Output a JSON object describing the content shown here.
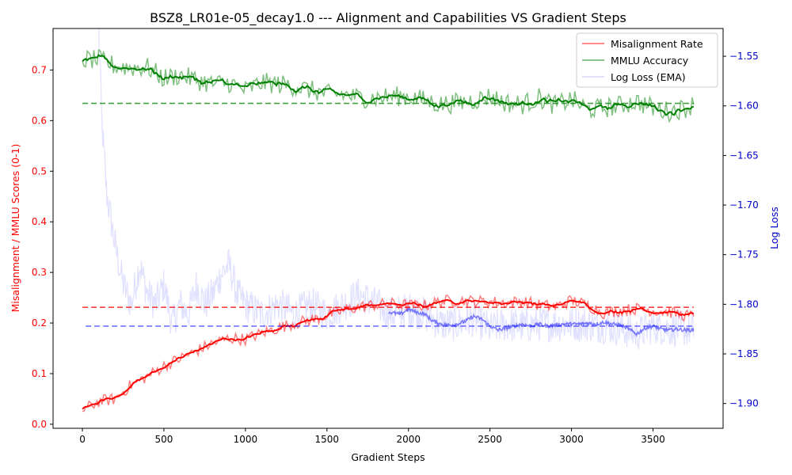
{
  "chart_data": {
    "type": "line",
    "title": "BSZ8_LR01e-05_decay1.0 --- Alignment and Capabilities VS Gradient Steps",
    "xlabel": "Gradient Steps",
    "ylabel_left": "Misalignment / MMLU Scores (0-1)",
    "ylabel_right": "Log Loss",
    "xlim": [
      -180,
      3930
    ],
    "ylim_left": [
      -0.008,
      0.782
    ],
    "ylim_right": [
      -1.925,
      -1.522
    ],
    "x_ticks": [
      0,
      500,
      1000,
      1500,
      2000,
      2500,
      3000,
      3500
    ],
    "y_left_ticks": [
      0.0,
      0.1,
      0.2,
      0.3,
      0.4,
      0.5,
      0.6,
      0.7
    ],
    "y_right_ticks": [
      -1.9,
      -1.85,
      -1.8,
      -1.75,
      -1.7,
      -1.65,
      -1.6,
      -1.55
    ],
    "legend": {
      "placement": "top-right",
      "entries": [
        "Misalignment Rate",
        "MMLU Accuracy",
        "Log Loss (EMA)"
      ]
    },
    "colors": {
      "misalignment": "#ff0000",
      "mmlu": "#008000",
      "loss": "#0000ff",
      "left_axis": "#ff0000",
      "right_axis": "#0000cc"
    },
    "series": [
      {
        "name": "Misalignment Rate",
        "axis": "left",
        "x": [
          0,
          100,
          200,
          300,
          400,
          500,
          600,
          700,
          800,
          900,
          1000,
          1100,
          1200,
          1300,
          1400,
          1500,
          1600,
          1700,
          1800,
          1900,
          2000,
          2100,
          2200,
          2300,
          2400,
          2500,
          2600,
          2700,
          2800,
          2900,
          3000,
          3100,
          3200,
          3300,
          3400,
          3500,
          3600,
          3700,
          3750
        ],
        "y": [
          0.027,
          0.045,
          0.05,
          0.078,
          0.095,
          0.115,
          0.13,
          0.145,
          0.16,
          0.17,
          0.168,
          0.18,
          0.19,
          0.2,
          0.205,
          0.215,
          0.225,
          0.232,
          0.236,
          0.238,
          0.235,
          0.235,
          0.243,
          0.245,
          0.243,
          0.242,
          0.24,
          0.243,
          0.236,
          0.232,
          0.245,
          0.235,
          0.22,
          0.225,
          0.228,
          0.225,
          0.222,
          0.215,
          0.213
        ],
        "mean": 0.231
      },
      {
        "name": "MMLU Accuracy",
        "axis": "left",
        "x": [
          0,
          100,
          200,
          300,
          400,
          500,
          600,
          700,
          800,
          900,
          1000,
          1100,
          1200,
          1300,
          1400,
          1500,
          1600,
          1700,
          1800,
          1900,
          2000,
          2100,
          2200,
          2300,
          2400,
          2500,
          2600,
          2700,
          2800,
          2900,
          3000,
          3100,
          3200,
          3300,
          3400,
          3500,
          3600,
          3700,
          3750
        ],
        "y": [
          0.72,
          0.72,
          0.708,
          0.705,
          0.705,
          0.683,
          0.69,
          0.68,
          0.672,
          0.675,
          0.66,
          0.675,
          0.672,
          0.668,
          0.66,
          0.652,
          0.652,
          0.645,
          0.645,
          0.648,
          0.648,
          0.64,
          0.632,
          0.635,
          0.64,
          0.648,
          0.635,
          0.632,
          0.645,
          0.63,
          0.642,
          0.622,
          0.625,
          0.63,
          0.638,
          0.625,
          0.618,
          0.625,
          0.632
        ],
        "mean": 0.634
      },
      {
        "name": "Log Loss (EMA)",
        "axis": "right",
        "x": [
          100,
          120,
          150,
          200,
          250,
          300,
          350,
          400,
          450,
          500,
          550,
          600,
          650,
          700,
          750,
          800,
          850,
          900,
          950,
          1000,
          1100,
          1200,
          1300,
          1400,
          1500,
          1600,
          1700,
          1800,
          1900,
          2000,
          2100,
          2200,
          2300,
          2400,
          2500,
          2600,
          2700,
          2800,
          2900,
          3000,
          3100,
          3200,
          3300,
          3400,
          3500,
          3600,
          3700,
          3750
        ],
        "y": [
          -1.522,
          -1.62,
          -1.69,
          -1.74,
          -1.78,
          -1.8,
          -1.76,
          -1.79,
          -1.8,
          -1.78,
          -1.82,
          -1.8,
          -1.81,
          -1.78,
          -1.8,
          -1.79,
          -1.77,
          -1.76,
          -1.79,
          -1.8,
          -1.81,
          -1.8,
          -1.81,
          -1.8,
          -1.81,
          -1.8,
          -1.79,
          -1.8,
          -1.81,
          -1.805,
          -1.81,
          -1.82,
          -1.82,
          -1.815,
          -1.825,
          -1.82,
          -1.822,
          -1.82,
          -1.82,
          -1.82,
          -1.82,
          -1.822,
          -1.825,
          -1.83,
          -1.822,
          -1.825,
          -1.825,
          -1.826
        ],
        "ema_x": [
          1880,
          1950,
          2000,
          2050,
          2100,
          2150,
          2200,
          2250,
          2300,
          2350,
          2400,
          2450,
          2500,
          2550,
          2600,
          2650,
          2700,
          2750,
          2800,
          2850,
          2900,
          2950,
          3000,
          3050,
          3100,
          3150,
          3200,
          3250,
          3300,
          3350,
          3400,
          3450,
          3500,
          3550,
          3600,
          3650,
          3700,
          3750
        ],
        "ema_y": [
          -1.808,
          -1.81,
          -1.805,
          -1.808,
          -1.81,
          -1.817,
          -1.82,
          -1.821,
          -1.82,
          -1.817,
          -1.812,
          -1.815,
          -1.822,
          -1.826,
          -1.824,
          -1.822,
          -1.82,
          -1.822,
          -1.82,
          -1.822,
          -1.821,
          -1.82,
          -1.82,
          -1.82,
          -1.819,
          -1.82,
          -1.818,
          -1.82,
          -1.821,
          -1.825,
          -1.83,
          -1.824,
          -1.822,
          -1.825,
          -1.826,
          -1.825,
          -1.826,
          -1.826
        ],
        "mean": -1.822
      }
    ]
  }
}
